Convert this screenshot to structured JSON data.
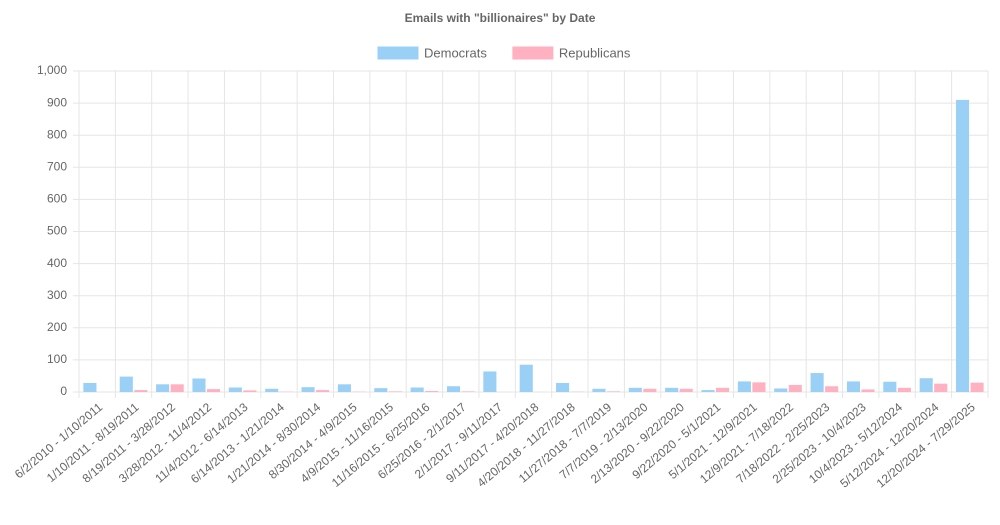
{
  "chart_data": {
    "type": "bar",
    "title": "Emails with \"billionaires\" by Date",
    "categories": [
      "6/2/2010 - 1/10/2011",
      "1/10/2011 - 8/19/2011",
      "8/19/2011 - 3/28/2012",
      "3/28/2012 - 11/4/2012",
      "11/4/2012 - 6/14/2013",
      "6/14/2013 - 1/21/2014",
      "1/21/2014 - 8/30/2014",
      "8/30/2014 - 4/9/2015",
      "4/9/2015 - 11/16/2015",
      "11/16/2015 - 6/25/2016",
      "6/25/2016 - 2/1/2017",
      "2/1/2017 - 9/11/2017",
      "9/11/2017 - 4/20/2018",
      "4/20/2018 - 11/27/2018",
      "11/27/2018 - 7/7/2019",
      "7/7/2019 - 2/13/2020",
      "2/13/2020 - 9/22/2020",
      "9/22/2020 - 5/1/2021",
      "5/1/2021 - 12/9/2021",
      "12/9/2021 - 7/18/2022",
      "7/18/2022 - 2/25/2023",
      "2/25/2023 - 10/4/2023",
      "10/4/2023 - 5/12/2024",
      "5/12/2024 - 12/20/2024",
      "12/20/2024 - 7/29/2025"
    ],
    "series": [
      {
        "name": "Democrats",
        "color": "#9ad0f5",
        "values": [
          28,
          48,
          24,
          42,
          14,
          10,
          15,
          24,
          12,
          14,
          18,
          64,
          85,
          28,
          10,
          13,
          13,
          6,
          33,
          11,
          59,
          33,
          32,
          43,
          910
        ]
      },
      {
        "name": "Republicans",
        "color": "#ffb1c1",
        "values": [
          0,
          6,
          24,
          9,
          5,
          1,
          6,
          1,
          2,
          3,
          2,
          0,
          0,
          1,
          2,
          10,
          10,
          13,
          30,
          22,
          18,
          8,
          13,
          26,
          29
        ]
      }
    ],
    "ylim": [
      0,
      1000
    ],
    "yticks": [
      0,
      100,
      200,
      300,
      400,
      500,
      600,
      700,
      800,
      900,
      {
        "value": 1000,
        "label": "1,000"
      }
    ],
    "grid": true,
    "legend": "top"
  }
}
